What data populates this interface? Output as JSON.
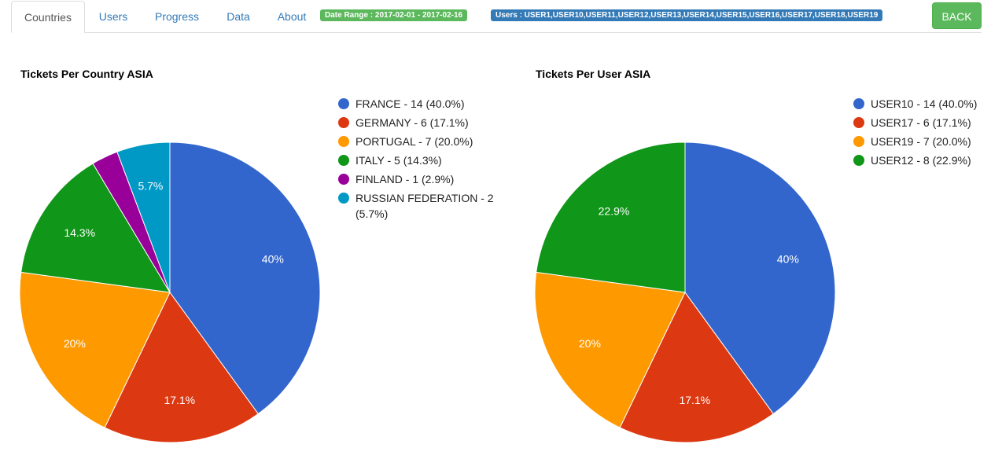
{
  "nav": {
    "tabs": [
      {
        "label": "Countries",
        "active": true
      },
      {
        "label": "Users",
        "active": false
      },
      {
        "label": "Progress",
        "active": false
      },
      {
        "label": "Data",
        "active": false
      },
      {
        "label": "About",
        "active": false
      }
    ],
    "date_badge": "Date Range : 2017-02-01 - 2017-02-16",
    "users_badge": "Users : USER1,USER10,USER11,USER12,USER13,USER14,USER15,USER16,USER17,USER18,USER19",
    "back_label": "BACK",
    "accent_color": "#337ab7",
    "success_color": "#5cb85c"
  },
  "chart_data": [
    {
      "type": "pie",
      "title": "Tickets Per Country ASIA",
      "legend_placement": "right",
      "slices": [
        {
          "label": "FRANCE",
          "value": 14,
          "percent_label": "40%",
          "legend": "FRANCE - 14 (40.0%)",
          "color": "#3366cc"
        },
        {
          "label": "GERMANY",
          "value": 6,
          "percent_label": "17.1%",
          "legend": "GERMANY - 6 (17.1%)",
          "color": "#dc3912"
        },
        {
          "label": "PORTUGAL",
          "value": 7,
          "percent_label": "20%",
          "legend": "PORTUGAL - 7 (20.0%)",
          "color": "#ff9900"
        },
        {
          "label": "ITALY",
          "value": 5,
          "percent_label": "14.3%",
          "legend": "ITALY - 5 (14.3%)",
          "color": "#109618"
        },
        {
          "label": "FINLAND",
          "value": 1,
          "percent_label": "",
          "legend": "FINLAND - 1 (2.9%)",
          "color": "#990099"
        },
        {
          "label": "RUSSIAN FEDERATION",
          "value": 2,
          "percent_label": "5.7%",
          "legend": "RUSSIAN FEDERATION - 2 (5.7%)",
          "color": "#0099c6"
        }
      ]
    },
    {
      "type": "pie",
      "title": "Tickets Per User ASIA",
      "legend_placement": "right",
      "slices": [
        {
          "label": "USER10",
          "value": 14,
          "percent_label": "40%",
          "legend": "USER10 - 14 (40.0%)",
          "color": "#3366cc"
        },
        {
          "label": "USER17",
          "value": 6,
          "percent_label": "17.1%",
          "legend": "USER17 - 6 (17.1%)",
          "color": "#dc3912"
        },
        {
          "label": "USER19",
          "value": 7,
          "percent_label": "20%",
          "legend": "USER19 - 7 (20.0%)",
          "color": "#ff9900"
        },
        {
          "label": "USER12",
          "value": 8,
          "percent_label": "22.9%",
          "legend": "USER12 - 8 (22.9%)",
          "color": "#109618"
        }
      ]
    }
  ]
}
